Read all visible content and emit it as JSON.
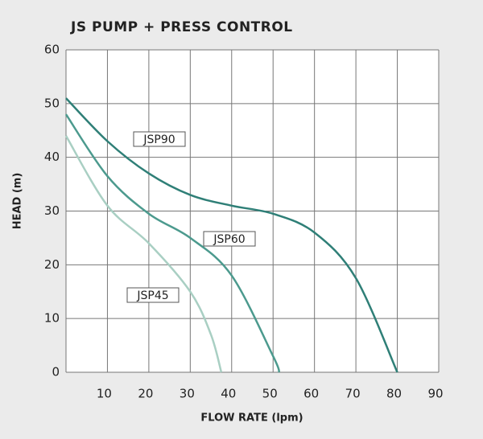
{
  "chart_data": {
    "type": "line",
    "title": "JS PUMP + PRESS CONTROL",
    "x_label": "FLOW RATE (lpm)",
    "y_label": "HEAD (m)",
    "xlim": [
      0,
      90
    ],
    "xticks": [
      10,
      20,
      30,
      40,
      50,
      60,
      70,
      80,
      90
    ],
    "ylim": [
      0,
      60
    ],
    "yticks": [
      0,
      10,
      20,
      30,
      40,
      50,
      60
    ],
    "grid": true,
    "series": [
      {
        "name": "JSP90",
        "color": "#2f7f77",
        "x": [
          0,
          10,
          20,
          30,
          40,
          50,
          60,
          70,
          80
        ],
        "values": [
          51,
          43,
          37,
          33,
          31,
          29.5,
          26,
          17.5,
          0
        ]
      },
      {
        "name": "JSP60",
        "color": "#4c9a8e",
        "x": [
          0,
          10,
          20,
          30,
          40,
          50,
          51.5
        ],
        "values": [
          48,
          36.5,
          29.5,
          25,
          18,
          3,
          0
        ]
      },
      {
        "name": "JSP45",
        "color": "#a9cfc3",
        "x": [
          0,
          10,
          20,
          30,
          35,
          37.5
        ],
        "values": [
          44,
          31,
          24,
          15,
          7,
          0
        ]
      }
    ]
  }
}
